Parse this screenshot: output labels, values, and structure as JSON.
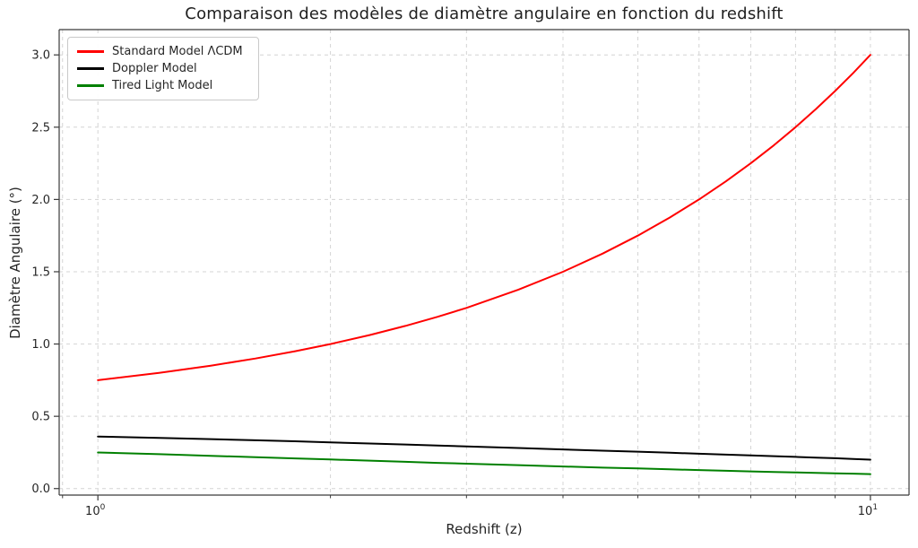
{
  "chart_data": {
    "type": "line",
    "title": "Comparaison des modèles de diamètre angulaire en fonction du redshift",
    "xlabel": "Redshift (z)",
    "ylabel": "Diamètre Angulaire (°)",
    "x_scale": "log",
    "xlim": [
      0.891,
      11.22
    ],
    "ylim": [
      -0.045,
      3.175
    ],
    "grid": "dashed light gray, major and minor",
    "legend_position": "upper left",
    "x": [
      1,
      1.2,
      1.4,
      1.6,
      1.8,
      2,
      2.25,
      2.5,
      2.75,
      3,
      3.5,
      4,
      4.5,
      5,
      5.5,
      6,
      6.5,
      7,
      7.5,
      8,
      8.5,
      9,
      9.5,
      10
    ],
    "series": [
      {
        "name": "Standard Model ΛCDM",
        "color": "#ff0000",
        "values": [
          0.75,
          0.8,
          0.85,
          0.9,
          0.95,
          1.0,
          1.0625,
          1.125,
          1.1875,
          1.25,
          1.375,
          1.5,
          1.625,
          1.75,
          1.875,
          2.0,
          2.125,
          2.25,
          2.375,
          2.5,
          2.625,
          2.75,
          2.875,
          3.0
        ]
      },
      {
        "name": "Doppler Model",
        "color": "#000000",
        "values": [
          0.36,
          0.35,
          0.342,
          0.334,
          0.327,
          0.32,
          0.312,
          0.305,
          0.298,
          0.292,
          0.281,
          0.271,
          0.262,
          0.255,
          0.248,
          0.241,
          0.235,
          0.23,
          0.224,
          0.219,
          0.214,
          0.21,
          0.205,
          0.2
        ]
      },
      {
        "name": "Tired Light Model",
        "color": "#008000",
        "values": [
          0.25,
          0.238,
          0.227,
          0.217,
          0.209,
          0.201,
          0.193,
          0.185,
          0.178,
          0.172,
          0.162,
          0.153,
          0.145,
          0.139,
          0.133,
          0.128,
          0.123,
          0.119,
          0.115,
          0.112,
          0.108,
          0.105,
          0.103,
          0.1
        ]
      }
    ],
    "yticks": [
      {
        "label": "0.0",
        "value": 0.0
      },
      {
        "label": "0.5",
        "value": 0.5
      },
      {
        "label": "1.0",
        "value": 1.0
      },
      {
        "label": "1.5",
        "value": 1.5
      },
      {
        "label": "2.0",
        "value": 2.0
      },
      {
        "label": "2.5",
        "value": 2.5
      },
      {
        "label": "3.0",
        "value": 3.0
      }
    ],
    "xticks_major": [
      {
        "label_base": "10",
        "label_exp": "0",
        "value": 1
      },
      {
        "label_base": "10",
        "label_exp": "1",
        "value": 10
      }
    ],
    "xticks_minor": [
      0.9,
      2,
      3,
      4,
      5,
      6,
      7,
      8,
      9
    ]
  }
}
